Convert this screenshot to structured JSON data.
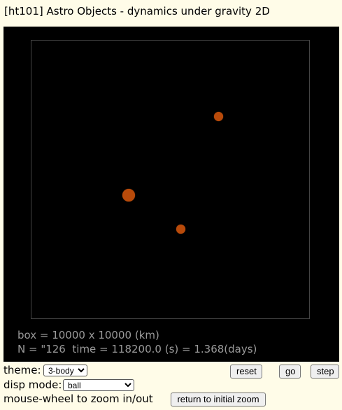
{
  "title": "[ht101] Astro Objects - dynamics under gravity 2D",
  "sim": {
    "box_text": "box = 10000 x 10000 (km)",
    "status_text": "N = \"126  time = 118200.0 (s) = 1.368(days)",
    "body_color": "#b84a0a"
  },
  "controls": {
    "theme_label": "theme:",
    "theme_value": "3-body",
    "disp_mode_label": "disp mode:",
    "disp_mode_value": "ball",
    "zoom_hint": "mouse-wheel to zoom in/out",
    "reset_label": "reset",
    "go_label": "go",
    "step_label": "step",
    "return_zoom_label": "return to initial zoom"
  }
}
